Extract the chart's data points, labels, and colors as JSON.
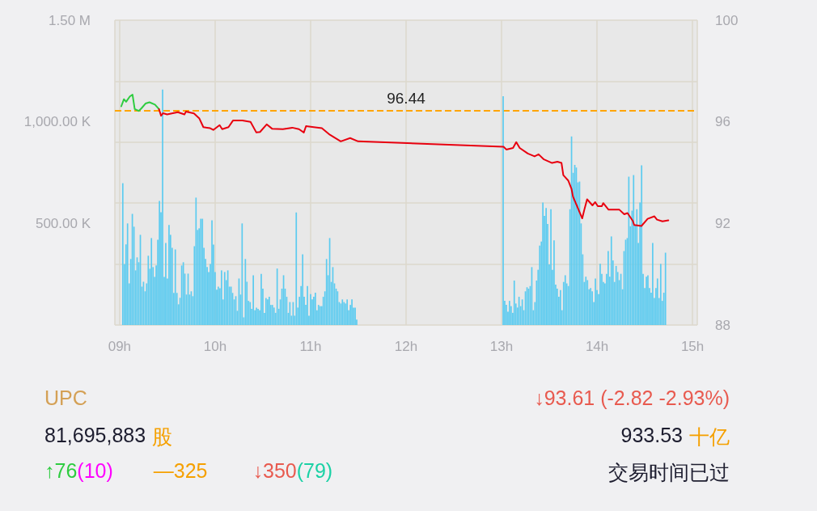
{
  "chart_data": {
    "type": "bar",
    "xlim": [
      8.95,
      15.05
    ],
    "xticks": [
      {
        "value": 9,
        "label": "09h"
      },
      {
        "value": 10,
        "label": "10h"
      },
      {
        "value": 11,
        "label": "11h"
      },
      {
        "value": 12,
        "label": "12h"
      },
      {
        "value": 13,
        "label": "13h"
      },
      {
        "value": 14,
        "label": "14h"
      },
      {
        "value": 15,
        "label": "15h"
      }
    ],
    "ylim": [
      0,
      1500000
    ],
    "yticks": [
      {
        "value": 0,
        "label": null
      },
      {
        "value": 500000,
        "label": "500.00 K"
      },
      {
        "value": 1000000,
        "label": "1,000.00 K"
      },
      {
        "value": 1500000,
        "label": "1.50 M"
      }
    ],
    "y2lim": [
      88,
      100
    ],
    "y2ticks": [
      88,
      92,
      96,
      100
    ],
    "grid": true,
    "series": [
      {
        "color": "#5bcbf0",
        "x": [
          9.033,
          9.05,
          9.067,
          9.083,
          9.1,
          9.117,
          9.133,
          9.15,
          9.167,
          9.183,
          9.2,
          9.217,
          9.233,
          9.25,
          9.267,
          9.283,
          9.3,
          9.317,
          9.333,
          9.35,
          9.367,
          9.383,
          9.4,
          9.417,
          9.433,
          9.45,
          9.467,
          9.483,
          9.5,
          9.517,
          9.533,
          9.55,
          9.567,
          9.583,
          9.6,
          9.617,
          9.633,
          9.65,
          9.667,
          9.683,
          9.7,
          9.717,
          9.733,
          9.75,
          9.767,
          9.783,
          9.8,
          9.817,
          9.833,
          9.85,
          9.867,
          9.883,
          9.9,
          9.917,
          9.933,
          9.95,
          9.967,
          9.983,
          10,
          10.017,
          10.033,
          10.05,
          10.067,
          10.083,
          10.1,
          10.117,
          10.133,
          10.15,
          10.167,
          10.183,
          10.2,
          10.217,
          10.233,
          10.25,
          10.267,
          10.283,
          10.3,
          10.317,
          10.333,
          10.35,
          10.367,
          10.383,
          10.4,
          10.417,
          10.433,
          10.45,
          10.467,
          10.483,
          10.5,
          10.517,
          10.533,
          10.55,
          10.567,
          10.583,
          10.6,
          10.617,
          10.633,
          10.65,
          10.667,
          10.683,
          10.7,
          10.717,
          10.733,
          10.75,
          10.767,
          10.783,
          10.8,
          10.817,
          10.833,
          10.85,
          10.867,
          10.883,
          10.9,
          10.917,
          10.933,
          10.95,
          10.967,
          10.983,
          11,
          11.017,
          11.033,
          11.05,
          11.067,
          11.083,
          11.1,
          11.117,
          11.133,
          11.15,
          11.167,
          11.183,
          11.2,
          11.217,
          11.233,
          11.25,
          11.267,
          11.283,
          11.3,
          11.317,
          11.333,
          11.35,
          11.367,
          11.383,
          11.4,
          11.417,
          11.433,
          11.45,
          11.467,
          11.483,
          13.017,
          13.033,
          13.05,
          13.067,
          13.083,
          13.1,
          13.117,
          13.133,
          13.15,
          13.167,
          13.183,
          13.2,
          13.217,
          13.233,
          13.25,
          13.267,
          13.283,
          13.3,
          13.317,
          13.333,
          13.35,
          13.367,
          13.383,
          13.4,
          13.417,
          13.433,
          13.45,
          13.467,
          13.483,
          13.5,
          13.517,
          13.533,
          13.55,
          13.567,
          13.583,
          13.6,
          13.617,
          13.633,
          13.65,
          13.667,
          13.683,
          13.7,
          13.717,
          13.733,
          13.75,
          13.767,
          13.783,
          13.8,
          13.817,
          13.833,
          13.85,
          13.867,
          13.883,
          13.9,
          13.917,
          13.933,
          13.95,
          13.967,
          13.983,
          14,
          14.017,
          14.033,
          14.05,
          14.067,
          14.083,
          14.1,
          14.117,
          14.133,
          14.15,
          14.167,
          14.183,
          14.2,
          14.217,
          14.233,
          14.25,
          14.267,
          14.283,
          14.3,
          14.317,
          14.333,
          14.35,
          14.367,
          14.383,
          14.4,
          14.417,
          14.433,
          14.45,
          14.467,
          14.483,
          14.5,
          14.517,
          14.533,
          14.55,
          14.567,
          14.583,
          14.6,
          14.617,
          14.633,
          14.65,
          14.667,
          14.683,
          14.7,
          14.717
        ],
        "values": [
          698000,
          300000,
          397000,
          500000,
          205000,
          325000,
          547000,
          484000,
          269000,
          333000,
          309000,
          444000,
          189000,
          213000,
          166000,
          205000,
          341000,
          277000,
          428000,
          285000,
          237000,
          293000,
          420000,
          611000,
          555000,
          1159000,
          237000,
          404000,
          229000,
          492000,
          444000,
          380000,
          158000,
          372000,
          158000,
          102000,
          134000,
          293000,
          309000,
          253000,
          150000,
          253000,
          150000,
          166000,
          142000,
          388000,
          627000,
          468000,
          476000,
          523000,
          523000,
          380000,
          325000,
          285000,
          261000,
          300000,
          515000,
          396000,
          261000,
          174000,
          189000,
          181000,
          269000,
          126000,
          261000,
          221000,
          269000,
          189000,
          189000,
          158000,
          126000,
          142000,
          70000,
          229000,
          150000,
          500000,
          38000,
          325000,
          213000,
          119000,
          113000,
          80000,
          245000,
          73000,
          86000,
          80000,
          73000,
          252000,
          179000,
          60000,
          133000,
          126000,
          139000,
          99000,
          99000,
          86000,
          60000,
          278000,
          80000,
          126000,
          179000,
          245000,
          179000,
          139000,
          60000,
          113000,
          46000,
          113000,
          46000,
          554000,
          86000,
          139000,
          192000,
          348000,
          139000,
          99000,
          192000,
          46000,
          152000,
          126000,
          139000,
          159000,
          73000,
          99000,
          93000,
          93000,
          139000,
          166000,
          325000,
          245000,
          428000,
          212000,
          285000,
          205000,
          179000,
          166000,
          113000,
          106000,
          126000,
          113000,
          106000,
          126000,
          73000,
          99000,
          126000,
          86000,
          86000,
          27000,
          1126000,
          119000,
          99000,
          66000,
          119000,
          93000,
          60000,
          219000,
          106000,
          86000,
          139000,
          93000,
          126000,
          73000,
          166000,
          186000,
          179000,
          192000,
          285000,
          73000,
          113000,
          219000,
          272000,
          391000,
          411000,
          603000,
          537000,
          576000,
          497000,
          298000,
          570000,
          272000,
          417000,
          199000,
          179000,
          139000,
          172000,
          73000,
          212000,
          245000,
          205000,
          192000,
          570000,
          928000,
          749000,
          788000,
          775000,
          702000,
          706000,
          500000,
          348000,
          212000,
          238000,
          221000,
          176000,
          182000,
          166000,
          113000,
          229000,
          172000,
          152000,
          301000,
          252000,
          212000,
          205000,
          252000,
          364000,
          238000,
          436000,
          318000,
          212000,
          291000,
          261000,
          221000,
          252000,
          176000,
          364000,
          420000,
          428000,
          730000,
          486000,
          563000,
          738000,
          490000,
          570000,
          404000,
          603000,
          786000,
          252000,
          182000,
          238000,
          245000,
          182000,
          159000,
          404000,
          133000,
          182000,
          229000,
          133000,
          301000,
          119000,
          159000,
          356000
        ]
      },
      {
        "type": "line",
        "axis": "y2",
        "color": "#2ecc40",
        "x": [
          9.017,
          9.045,
          9.068,
          9.107,
          9.135,
          9.158,
          9.2,
          9.228,
          9.271,
          9.313,
          9.37,
          9.412
        ],
        "values": [
          96.61,
          96.89,
          96.79,
          97.0,
          97.07,
          96.5,
          96.43,
          96.53,
          96.72,
          96.77,
          96.68,
          96.5
        ]
      },
      {
        "type": "line",
        "axis": "y2",
        "color": "#e8000f",
        "x": [
          9.412,
          9.434,
          9.454,
          9.497,
          9.609,
          9.679,
          9.694,
          9.778,
          9.835,
          9.877,
          9.948,
          9.981,
          10.047,
          10.074,
          10.14,
          10.187,
          10.286,
          10.371,
          10.432,
          10.47,
          10.54,
          10.596,
          10.709,
          10.808,
          10.878,
          10.929,
          10.952,
          11.033,
          11.118,
          11.202,
          11.316,
          11.414,
          11.498,
          13.021,
          13.05,
          13.12,
          13.154,
          13.19,
          13.275,
          13.346,
          13.388,
          13.444,
          13.529,
          13.585,
          13.628,
          13.647,
          13.698,
          13.732,
          13.749,
          13.845,
          13.867,
          13.896,
          13.952,
          13.981,
          14.008,
          14.051,
          14.065,
          14.121,
          14.234,
          14.285,
          14.319,
          14.375,
          14.389,
          14.465,
          14.53,
          14.601,
          14.628,
          14.685,
          14.747
        ],
        "values": [
          96.5,
          96.24,
          96.34,
          96.29,
          96.38,
          96.29,
          96.4,
          96.33,
          96.13,
          95.79,
          95.75,
          95.68,
          95.87,
          95.71,
          95.79,
          96.05,
          96.05,
          96.0,
          95.58,
          95.6,
          95.9,
          95.73,
          95.71,
          95.77,
          95.71,
          95.58,
          95.83,
          95.79,
          95.75,
          95.49,
          95.23,
          95.36,
          95.23,
          95.02,
          94.91,
          94.97,
          95.2,
          94.97,
          94.75,
          94.64,
          94.72,
          94.52,
          94.38,
          94.43,
          94.38,
          93.9,
          93.69,
          93.37,
          93.05,
          92.2,
          92.54,
          92.95,
          92.71,
          92.84,
          92.68,
          92.68,
          92.8,
          92.54,
          92.54,
          92.36,
          92.41,
          92.1,
          91.94,
          91.9,
          92.18,
          92.28,
          92.15,
          92.08,
          92.12
        ]
      }
    ],
    "ref_lines": [
      {
        "axis": "y2",
        "value": 96.44,
        "label": "96.44",
        "color": "#ffa500",
        "line_style": "dashed"
      }
    ],
    "annotations": [
      "UPC",
      "↓93.61 (-2.82 -2.93%)",
      "81,695,883",
      "股",
      "933.53",
      "十亿",
      "↑76",
      "(10)",
      "—325",
      "↓350",
      "(79)",
      "交易时间已过"
    ]
  }
}
